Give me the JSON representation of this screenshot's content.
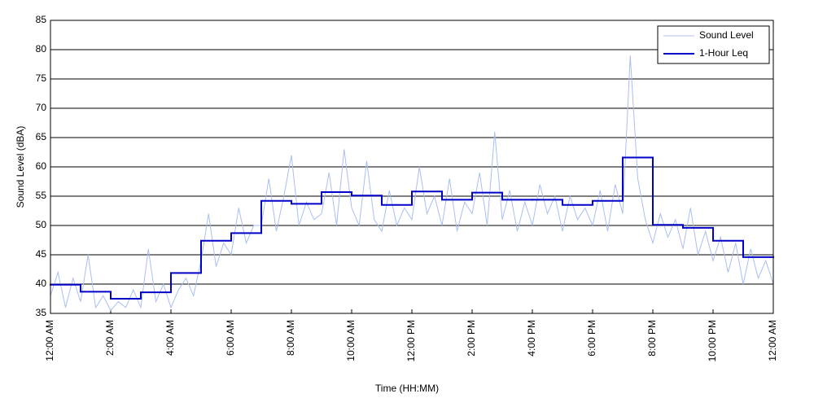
{
  "chart_data": {
    "type": "line",
    "xlabel": "Time (HH:MM)",
    "ylabel": "Sound Level (dBA)",
    "xlim": [
      0,
      24
    ],
    "ylim": [
      35,
      85
    ],
    "xticks": [
      {
        "value": 0,
        "label": "12:00 AM"
      },
      {
        "value": 2,
        "label": "2:00 AM"
      },
      {
        "value": 4,
        "label": "4:00 AM"
      },
      {
        "value": 6,
        "label": "6:00 AM"
      },
      {
        "value": 8,
        "label": "8:00 AM"
      },
      {
        "value": 10,
        "label": "10:00 AM"
      },
      {
        "value": 12,
        "label": "12:00 PM"
      },
      {
        "value": 14,
        "label": "2:00 PM"
      },
      {
        "value": 16,
        "label": "4:00 PM"
      },
      {
        "value": 18,
        "label": "6:00 PM"
      },
      {
        "value": 20,
        "label": "8:00 PM"
      },
      {
        "value": 22,
        "label": "10:00 PM"
      },
      {
        "value": 24,
        "label": "12:00 AM"
      }
    ],
    "yticks": [
      35,
      40,
      45,
      50,
      55,
      60,
      65,
      70,
      75,
      80,
      85
    ],
    "grid": true,
    "legend": "upper right",
    "series": [
      {
        "name": "Sound Level",
        "color": "#a8bff2",
        "drawstyle": "default",
        "x": [
          0,
          0.25,
          0.5,
          0.75,
          1,
          1.25,
          1.5,
          1.75,
          2,
          2.25,
          2.5,
          2.75,
          3,
          3.25,
          3.5,
          3.75,
          4,
          4.25,
          4.5,
          4.75,
          5,
          5.25,
          5.5,
          5.75,
          6,
          6.25,
          6.5,
          6.75,
          7,
          7.25,
          7.5,
          7.75,
          8,
          8.25,
          8.5,
          8.75,
          9,
          9.25,
          9.5,
          9.75,
          10,
          10.25,
          10.5,
          10.75,
          11,
          11.25,
          11.5,
          11.75,
          12,
          12.25,
          12.5,
          12.75,
          13,
          13.25,
          13.5,
          13.75,
          14,
          14.25,
          14.5,
          14.75,
          15,
          15.25,
          15.5,
          15.75,
          16,
          16.25,
          16.5,
          16.75,
          17,
          17.25,
          17.5,
          17.75,
          18,
          18.25,
          18.5,
          18.75,
          19,
          19.25,
          19.5,
          19.75,
          20,
          20.25,
          20.5,
          20.75,
          21,
          21.25,
          21.5,
          21.75,
          22,
          22.25,
          22.5,
          22.75,
          23,
          23.25,
          23.5,
          23.75,
          24
        ],
        "values": [
          38,
          42,
          36,
          41,
          37,
          45,
          36,
          38,
          35.5,
          37,
          36,
          39,
          36,
          46,
          37,
          40,
          36,
          39,
          41,
          38,
          44,
          52,
          43,
          47,
          45,
          53,
          47,
          50,
          50,
          58,
          49,
          55,
          62,
          50,
          54,
          51,
          52,
          59,
          50,
          63,
          53,
          50,
          61,
          51,
          49,
          56,
          50,
          53,
          51,
          60,
          52,
          55,
          50,
          58,
          49,
          54,
          52,
          59,
          50,
          66,
          51,
          56,
          49,
          54,
          50,
          57,
          52,
          55,
          49,
          55,
          51,
          53,
          50,
          56,
          49,
          57,
          52,
          79,
          58,
          51,
          47,
          52,
          48,
          51,
          46,
          53,
          45,
          49,
          44,
          48,
          42,
          47,
          40,
          46,
          41,
          44,
          40
        ]
      },
      {
        "name": "1-Hour Leq",
        "color": "#0000c8",
        "drawstyle": "steps-post",
        "x": [
          0,
          1,
          2,
          3,
          4,
          5,
          6,
          7,
          8,
          9,
          10,
          11,
          12,
          13,
          14,
          15,
          16,
          17,
          18,
          19,
          20,
          21,
          22,
          23
        ],
        "values": [
          39.9,
          38.7,
          37.5,
          38.6,
          41.9,
          47.4,
          48.7,
          54.2,
          53.7,
          55.7,
          55.1,
          53.5,
          55.8,
          54.4,
          55.6,
          54.4,
          54.4,
          53.5,
          54.2,
          61.6,
          50.1,
          49.6,
          47.4,
          44.6
        ]
      }
    ]
  }
}
